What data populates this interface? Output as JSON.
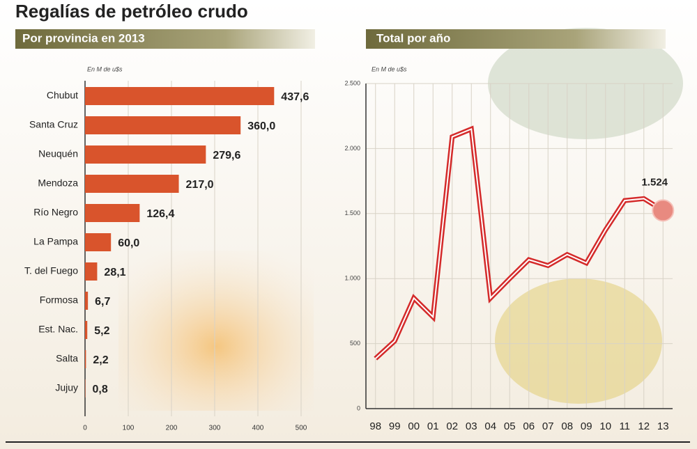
{
  "title": "Regalías de petróleo crudo",
  "chart_data": [
    {
      "type": "bar",
      "orientation": "horizontal",
      "subtitle": "Por provincia en 2013",
      "axis_label": "En M de u$s",
      "categories": [
        "Chubut",
        "Santa Cruz",
        "Neuquén",
        "Mendoza",
        "Río Negro",
        "La Pampa",
        "T. del Fuego",
        "Formosa",
        "Est. Nac.",
        "Salta",
        "Jujuy"
      ],
      "values": [
        437.6,
        360.0,
        279.6,
        217.0,
        126.4,
        60.0,
        28.1,
        6.7,
        5.2,
        2.2,
        0.8
      ],
      "value_labels": [
        "437,6",
        "360,0",
        "279,6",
        "217,0",
        "126,4",
        "60,0",
        "28,1",
        "6,7",
        "5,2",
        "2,2",
        "0,8"
      ],
      "color": "#d9542c",
      "xlim": [
        0,
        500
      ],
      "xticks": [
        0,
        100,
        200,
        300,
        400,
        500
      ],
      "grid": true
    },
    {
      "type": "line",
      "subtitle": "Total por año",
      "axis_label": "En M de u$s",
      "categories": [
        "98",
        "99",
        "00",
        "01",
        "02",
        "03",
        "04",
        "05",
        "06",
        "07",
        "08",
        "09",
        "10",
        "11",
        "12",
        "13"
      ],
      "values": [
        385,
        520,
        850,
        705,
        2090,
        2150,
        850,
        1000,
        1145,
        1100,
        1185,
        1120,
        1375,
        1600,
        1615,
        1524
      ],
      "value_labels": [
        null,
        null,
        null,
        null,
        null,
        null,
        null,
        null,
        null,
        null,
        null,
        null,
        null,
        null,
        null,
        "1.524"
      ],
      "color": "#d42a2a",
      "ylim": [
        0,
        2500
      ],
      "yticks": [
        0,
        500,
        {
          "value": 1000,
          "label": "1.000"
        },
        {
          "value": 1500,
          "label": "1.500"
        },
        {
          "value": 2000,
          "label": "2.000"
        },
        {
          "value": 2500,
          "label": "2.500"
        }
      ],
      "grid": true
    }
  ]
}
